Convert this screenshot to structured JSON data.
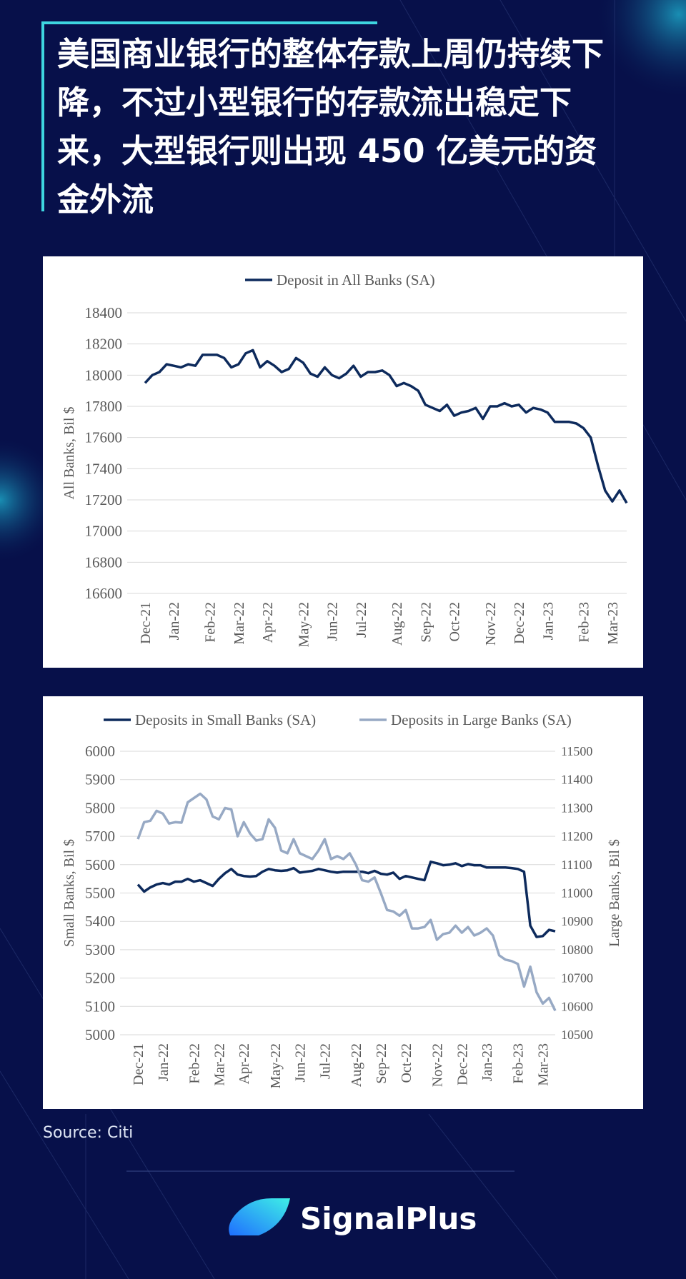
{
  "header": {
    "title": "美国商业银行的整体存款上周仍持续下降，不过小型银行的存款流出稳定下来，大型银行则出现 450 亿美元的资金外流"
  },
  "chart_data": [
    {
      "type": "line",
      "categories": [
        "Dec-21",
        null,
        null,
        null,
        "Jan-22",
        null,
        null,
        null,
        null,
        "Feb-22",
        null,
        null,
        null,
        "Mar-22",
        null,
        null,
        null,
        "Apr-22",
        null,
        null,
        null,
        null,
        "May-22",
        null,
        null,
        null,
        "Jun-22",
        null,
        null,
        null,
        "Jul-22",
        null,
        null,
        null,
        null,
        "Aug-22",
        null,
        null,
        null,
        "Sep-22",
        null,
        null,
        null,
        "Oct-22",
        null,
        null,
        null,
        null,
        "Nov-22",
        null,
        null,
        null,
        "Dec-22",
        null,
        null,
        null,
        "Jan-23",
        null,
        null,
        null,
        null,
        "Feb-23",
        null,
        null,
        null,
        "Mar-23",
        null,
        null
      ],
      "series": [
        {
          "name": "Deposit in All Banks (SA)",
          "color": "#0d2a5c",
          "values": [
            17950,
            18000,
            18020,
            18070,
            18060,
            18050,
            18070,
            18060,
            18130,
            18130,
            18130,
            18110,
            18050,
            18070,
            18140,
            18160,
            18050,
            18090,
            18060,
            18020,
            18040,
            18110,
            18080,
            18010,
            17990,
            18050,
            18000,
            17980,
            18010,
            18060,
            17990,
            18020,
            18020,
            18030,
            18000,
            17930,
            17950,
            17930,
            17900,
            17810,
            17790,
            17770,
            17810,
            17740,
            17760,
            17770,
            17790,
            17720,
            17800,
            17800,
            17820,
            17800,
            17810,
            17760,
            17790,
            17780,
            17760,
            17700,
            17700,
            17700,
            17690,
            17660,
            17600,
            17420,
            17260,
            17190,
            17260,
            17180
          ]
        }
      ],
      "ylabel": "All Banks, Bil $",
      "ylim": [
        16600,
        18400
      ],
      "yticks": [
        16600,
        16800,
        17000,
        17200,
        17400,
        17600,
        17800,
        18000,
        18200,
        18400
      ],
      "grid": true
    },
    {
      "type": "line",
      "categories": [
        "Dec-21",
        null,
        null,
        null,
        "Jan-22",
        null,
        null,
        null,
        null,
        "Feb-22",
        null,
        null,
        null,
        "Mar-22",
        null,
        null,
        null,
        "Apr-22",
        null,
        null,
        null,
        null,
        "May-22",
        null,
        null,
        null,
        "Jun-22",
        null,
        null,
        null,
        "Jul-22",
        null,
        null,
        null,
        null,
        "Aug-22",
        null,
        null,
        null,
        "Sep-22",
        null,
        null,
        null,
        "Oct-22",
        null,
        null,
        null,
        null,
        "Nov-22",
        null,
        null,
        null,
        "Dec-22",
        null,
        null,
        null,
        "Jan-23",
        null,
        null,
        null,
        null,
        "Feb-23",
        null,
        null,
        null,
        "Mar-23",
        null,
        null
      ],
      "series": [
        {
          "name": "Deposits in Small Banks (SA)",
          "color": "#0d2a5c",
          "values": [
            5530,
            5505,
            5520,
            5530,
            5535,
            5530,
            5540,
            5540,
            5550,
            5540,
            5545,
            5535,
            5525,
            5550,
            5570,
            5585,
            5565,
            5560,
            5558,
            5560,
            5575,
            5585,
            5580,
            5578,
            5580,
            5588,
            5572,
            5575,
            5578,
            5585,
            5580,
            5575,
            5572,
            5575,
            5575,
            5575,
            5575,
            5570,
            5578,
            5568,
            5565,
            5572,
            5550,
            5560,
            5555,
            5550,
            5545,
            5610,
            5605,
            5598,
            5600,
            5605,
            5595,
            5602,
            5598,
            5598,
            5590,
            5590,
            5590,
            5590,
            5588,
            5585,
            5575,
            5385,
            5345,
            5348,
            5370,
            5365
          ]
        },
        {
          "name": "Deposits in Large Banks (SA)",
          "color": "#97a9c4",
          "axis": "y2",
          "values": [
            11190,
            11250,
            11255,
            11290,
            11280,
            11245,
            11250,
            11248,
            11320,
            11335,
            11350,
            11330,
            11270,
            11260,
            11300,
            11295,
            11200,
            11250,
            11210,
            11185,
            11190,
            11260,
            11230,
            11150,
            11140,
            11190,
            11140,
            11130,
            11120,
            11150,
            11190,
            11120,
            11130,
            11120,
            11140,
            11100,
            11045,
            11040,
            11055,
            11000,
            10940,
            10935,
            10920,
            10940,
            10875,
            10875,
            10880,
            10905,
            10835,
            10855,
            10860,
            10885,
            10860,
            10880,
            10850,
            10860,
            10875,
            10850,
            10780,
            10765,
            10760,
            10750,
            10670,
            10740,
            10650,
            10610,
            10630,
            10585
          ]
        }
      ],
      "ylabel": "Small Banks, Bil $",
      "y2label": "Large Banks, Bil $",
      "ylim": [
        5000,
        6000
      ],
      "yticks": [
        5000,
        5100,
        5200,
        5300,
        5400,
        5500,
        5600,
        5700,
        5800,
        5900,
        6000
      ],
      "y2lim": [
        10500,
        11500
      ],
      "y2ticks": [
        10500,
        10600,
        10700,
        10800,
        10900,
        11000,
        11100,
        11200,
        11300,
        11400,
        11500
      ],
      "grid": true
    }
  ],
  "source": "Source: Citi",
  "brand": "SignalPlus"
}
